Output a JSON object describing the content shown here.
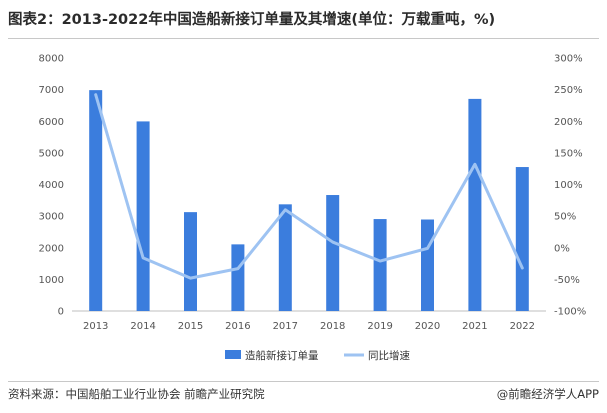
{
  "title": "图表2：2013-2022年中国造船新接订单量及其增速(单位：万载重吨，%)",
  "source": "资料来源：中国船舶工业行业协会 前瞻产业研究院",
  "brand": "@前瞻经济学人APP",
  "colors": {
    "bar": "#3b7ddd",
    "line": "#9ec3f2"
  },
  "chart_data": {
    "type": "bar",
    "title": "图表2：2013-2022年中国造船新接订单量及其增速(单位：万载重吨，%)",
    "categories": [
      "2013",
      "2014",
      "2015",
      "2016",
      "2017",
      "2018",
      "2019",
      "2020",
      "2021",
      "2022"
    ],
    "y_left": {
      "range": [
        0,
        8000
      ],
      "ticks": [
        "0",
        "1000",
        "2000",
        "3000",
        "4000",
        "5000",
        "6000",
        "7000",
        "8000"
      ]
    },
    "y_right": {
      "range": [
        -100,
        300
      ],
      "ticks": [
        "-100%",
        "-50%",
        "0%",
        "50%",
        "100%",
        "150%",
        "200%",
        "250%",
        "300%"
      ]
    },
    "series": [
      {
        "name": "造船新接订单量",
        "type": "bar",
        "axis": "left",
        "values": [
          6984,
          5995,
          3126,
          2107,
          3373,
          3667,
          2907,
          2893,
          6707,
          4552
        ]
      },
      {
        "name": "同比增速",
        "type": "line",
        "axis": "right",
        "values": [
          242,
          -16,
          -48,
          -33,
          60,
          9,
          -21,
          -1,
          132,
          -32
        ]
      }
    ],
    "grid": false,
    "legend_position": "bottom"
  }
}
